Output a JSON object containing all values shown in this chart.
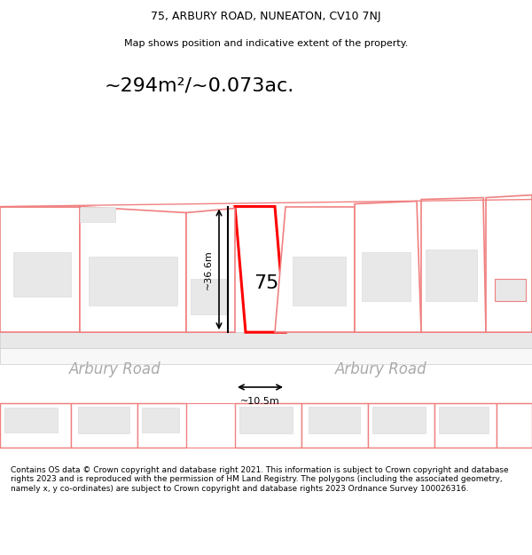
{
  "title_line1": "75, ARBURY ROAD, NUNEATON, CV10 7NJ",
  "title_line2": "Map shows position and indicative extent of the property.",
  "area_text": "~294m²/~0.073ac.",
  "house_number": "75",
  "dim_width": "~10.5m",
  "dim_height": "~36.6m",
  "road_label": "Arbury Road",
  "footer_text": "Contains OS data © Crown copyright and database right 2021. This information is subject to Crown copyright and database rights 2023 and is reproduced with the permission of HM Land Registry. The polygons (including the associated geometry, namely x, y co-ordinates) are subject to Crown copyright and database rights 2023 Ordnance Survey 100026316.",
  "bg_color": "#ffffff",
  "plot_color_fill": "#f5f5f5",
  "plot_color_edge": "#f08080",
  "highlight_color": "#ff0000",
  "building_fill": "#e8e8e8",
  "road_fill": "#f0f0f0",
  "title_fontsize": 9,
  "area_fontsize": 16,
  "footer_fontsize": 6.5
}
